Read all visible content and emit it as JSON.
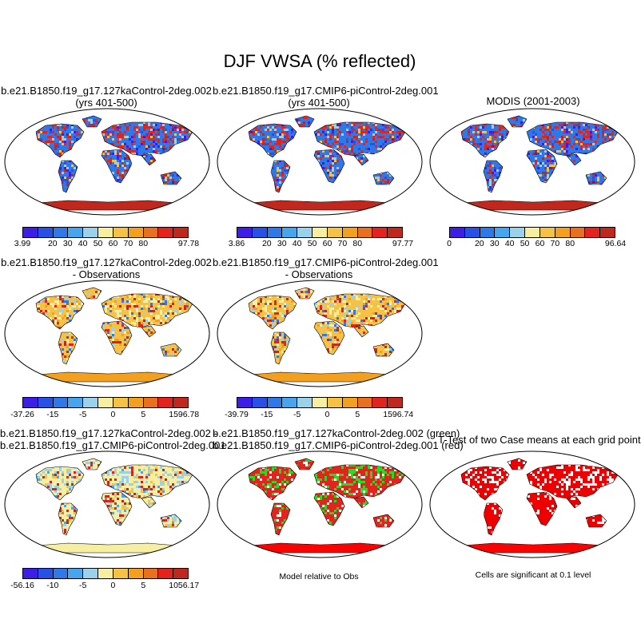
{
  "main_title": "DJF VWSA (% reflected)",
  "palette_abs": [
    "#3c1ee6",
    "#2850e6",
    "#2e78ea",
    "#46a5ec",
    "#9ad2ec",
    "#f6eea0",
    "#f5c246",
    "#f2a01e",
    "#e8701e",
    "#e2231e",
    "#c0281e"
  ],
  "palette_diff": [
    "#3c1ee6",
    "#2850e6",
    "#2e78ea",
    "#46a5ec",
    "#9ad2ec",
    "#f6eea0",
    "#f5c246",
    "#f2a01e",
    "#e8701e",
    "#e2231e",
    "#c0281e"
  ],
  "panels": {
    "p1": {
      "title_line1": "b.e21.B1850.f19_g17.127kaControl-2deg.002",
      "title_line2": "(yrs 401-500)",
      "ticks": [
        "3.99",
        "20",
        "30",
        "40",
        "50",
        "60",
        "70",
        "80",
        "97.78"
      ]
    },
    "p2": {
      "title_line1": "b.e21.B1850.f19_g17.CMIP6-piControl-2deg.001",
      "title_line2": "(yrs 401-500)",
      "ticks": [
        "3.86",
        "20",
        "30",
        "40",
        "50",
        "60",
        "70",
        "80",
        "97.77"
      ]
    },
    "p3": {
      "title_line1": "MODIS (2001-2003)",
      "ticks": [
        "0",
        "20",
        "30",
        "40",
        "50",
        "60",
        "70",
        "80",
        "96.64"
      ]
    },
    "p4": {
      "title_line1": "b.e21.B1850.f19_g17.127kaControl-2deg.002",
      "title_line2": "- Observations",
      "ticks": [
        "-37.26",
        "-15",
        "-5",
        "0",
        "5",
        "15",
        "96.78"
      ]
    },
    "p5": {
      "title_line1": "b.e21.B1850.f19_g17.CMIP6-piControl-2deg.001",
      "title_line2": "- Observations",
      "ticks": [
        "-39.79",
        "-15",
        "-5",
        "0",
        "5",
        "15",
        "96.74"
      ]
    },
    "p7": {
      "title_line1": "b.e21.B1850.f19_g17.127kaControl-2deg.002 -",
      "title_line2": "b.e21.B1850.f19_g17.CMIP6-piControl-2deg.001",
      "ticks": [
        "-56.16",
        "-10",
        "-5",
        "0",
        "5",
        "10",
        "56.17"
      ]
    },
    "p8": {
      "title_line1": "b.e21.B1850.f19_g17.127kaControl-2deg.002 (green)",
      "title_line2": "b.e21.B1850.f19_g17.CMIP6-piControl-2deg.001 (red)",
      "caption": "Model relative to Obs"
    },
    "p9": {
      "title_line1": "T-Test of two Case means at each grid point",
      "caption": "Cells are significant at 0.1 level"
    }
  }
}
